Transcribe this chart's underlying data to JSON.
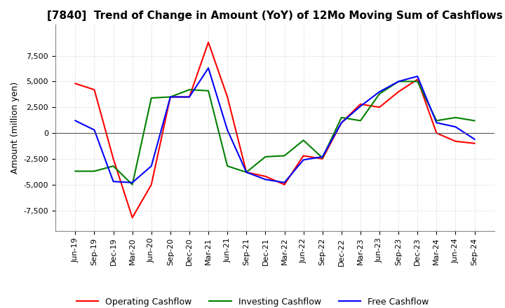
{
  "title": "[7840]  Trend of Change in Amount (YoY) of 12Mo Moving Sum of Cashflows",
  "ylabel": "Amount (million yen)",
  "x_labels": [
    "Jun-19",
    "Sep-19",
    "Dec-19",
    "Mar-20",
    "Jun-20",
    "Sep-20",
    "Dec-20",
    "Mar-21",
    "Jun-21",
    "Sep-21",
    "Dec-21",
    "Mar-22",
    "Jun-22",
    "Sep-22",
    "Dec-22",
    "Mar-23",
    "Jun-23",
    "Sep-23",
    "Dec-23",
    "Mar-24",
    "Jun-24",
    "Sep-24"
  ],
  "operating": [
    4800,
    4200,
    -2500,
    -8200,
    -5000,
    3500,
    3500,
    8800,
    3500,
    -3800,
    -4200,
    -5000,
    -2200,
    -2500,
    1000,
    2800,
    2500,
    4000,
    5200,
    0,
    -800,
    -1000
  ],
  "investing": [
    -3700,
    -3700,
    -3200,
    -5000,
    3400,
    3500,
    4200,
    4100,
    -3200,
    -3800,
    -2300,
    -2200,
    -700,
    -2400,
    1500,
    1200,
    3800,
    5000,
    5000,
    1200,
    1500,
    1200
  ],
  "free": [
    1200,
    300,
    -4700,
    -4800,
    -3200,
    3500,
    3500,
    6300,
    300,
    -3800,
    -4500,
    -4800,
    -2600,
    -2300,
    1000,
    2600,
    4000,
    5000,
    5500,
    1000,
    600,
    -600
  ],
  "operating_color": "#ff0000",
  "investing_color": "#008000",
  "free_color": "#0000ff",
  "ylim": [
    -9500,
    10500
  ],
  "yticks": [
    -7500,
    -5000,
    -2500,
    0,
    2500,
    5000,
    7500
  ],
  "grid_color": "#cccccc",
  "grid_style": "dotted",
  "background_color": "#ffffff",
  "title_fontsize": 11,
  "ylabel_fontsize": 9,
  "tick_fontsize": 8,
  "legend_fontsize": 9
}
